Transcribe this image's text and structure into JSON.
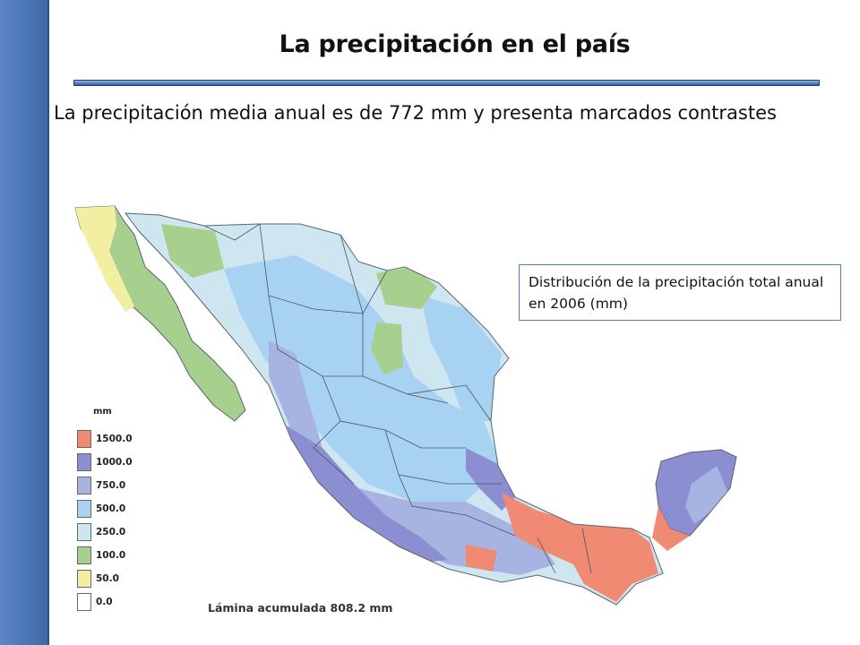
{
  "slide": {
    "title": "La precipitación en el país",
    "subtitle": "La precipitación media anual es de 772 mm y presenta marcados contrastes",
    "callout": "Distribución de la precipitación total anual en 2006 (mm)"
  },
  "map": {
    "legend_title": "mm",
    "legend": [
      {
        "label": "1500.0",
        "color": "#f08a72"
      },
      {
        "label": "1000.0",
        "color": "#8b8fd2"
      },
      {
        "label": "750.0",
        "color": "#a7b4e2"
      },
      {
        "label": "500.0",
        "color": "#a8d2f2"
      },
      {
        "label": "250.0",
        "color": "#cde6ef"
      },
      {
        "label": "100.0",
        "color": "#a7cf8e"
      },
      {
        "label": "50.0",
        "color": "#f3efa2"
      },
      {
        "label": "0.0",
        "color": "#ffffff"
      }
    ],
    "caption": "Lámina acumulada 808.2 mm"
  }
}
